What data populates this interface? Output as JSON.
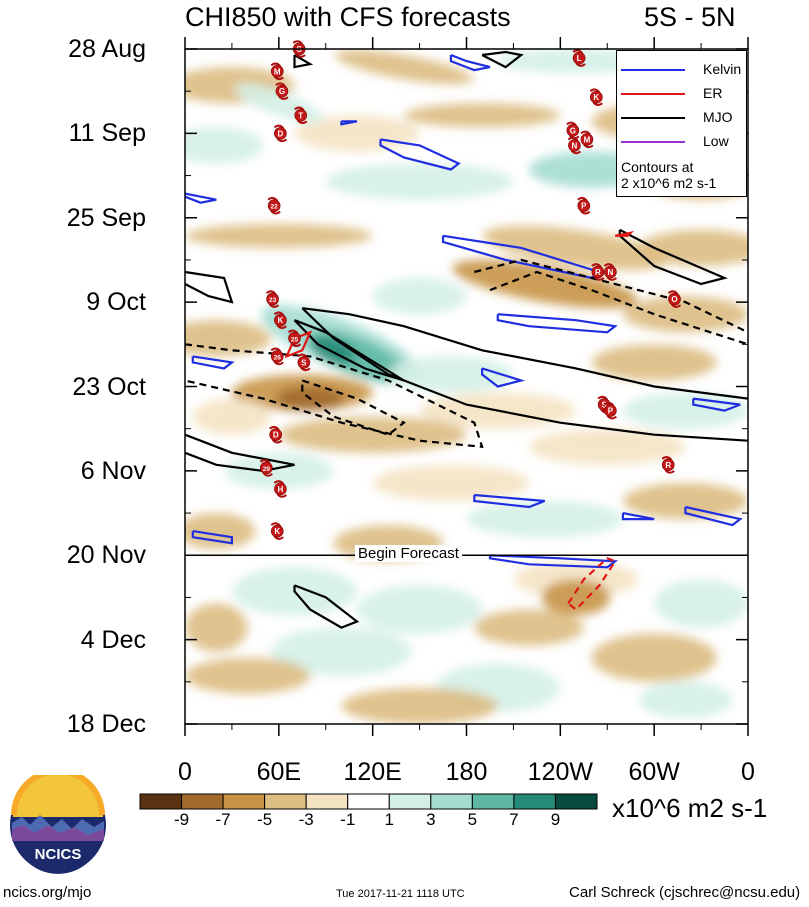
{
  "header": {
    "title": "CHI850 with CFS forecasts",
    "region": "5S - 5N"
  },
  "chart_data": {
    "type": "heatmap",
    "title": "CHI850 with CFS forecasts",
    "subtitle": "5S - 5N",
    "x_tick_labels": [
      "0",
      "60E",
      "120E",
      "180",
      "120W",
      "60W",
      "0"
    ],
    "x_ticks_deg": [
      0,
      60,
      120,
      180,
      240,
      300,
      360
    ],
    "xlim": [
      0,
      360
    ],
    "y_tick_labels": [
      "28 Aug",
      "11 Sep",
      "25 Sep",
      "9 Oct",
      "23 Oct",
      "6 Nov",
      "20 Nov",
      "4 Dec",
      "18 Dec"
    ],
    "y_ticks_day": [
      0,
      14,
      28,
      42,
      56,
      70,
      84,
      98,
      112
    ],
    "ylim_day": [
      0,
      112
    ],
    "forecast_start_day": 84,
    "forecast_label": "Begin Forecast",
    "colorbar": {
      "labels": [
        "-9",
        "-7",
        "-5",
        "-3",
        "-1",
        "1",
        "3",
        "5",
        "7",
        "9"
      ],
      "levels": [
        -9,
        -7,
        -5,
        -3,
        -1,
        1,
        3,
        5,
        7,
        9
      ],
      "colors": [
        "#5a3412",
        "#a06a2c",
        "#c69347",
        "#dcbd82",
        "#f4e3c3",
        "#ffffff",
        "#d4efe7",
        "#a4dcd0",
        "#5fb8a4",
        "#268a78",
        "#0a4b40"
      ],
      "units": "x10^6 m2 s-1"
    },
    "legend": [
      {
        "label": "Kelvin",
        "color": "#1f2ee0"
      },
      {
        "label": "ER",
        "color": "#e01616"
      },
      {
        "label": "MJO",
        "color": "#000000"
      },
      {
        "label": "Low",
        "color": "#9933cc"
      }
    ],
    "contour_note": [
      "Contours at",
      "2 x10^6 m2 s-1"
    ],
    "storms": [
      {
        "label": "S",
        "lon": 73,
        "day": 0
      },
      {
        "label": "L",
        "lon": 252,
        "day": 1.5
      },
      {
        "label": "M",
        "lon": 59,
        "day": 3.7
      },
      {
        "label": "K",
        "lon": 263,
        "day": 8
      },
      {
        "label": "G",
        "lon": 62,
        "day": 7
      },
      {
        "label": "T",
        "lon": 74,
        "day": 11
      },
      {
        "label": "D",
        "lon": 61,
        "day": 14
      },
      {
        "label": "G",
        "lon": 248,
        "day": 13.5
      },
      {
        "label": "M",
        "lon": 257,
        "day": 15
      },
      {
        "label": "N",
        "lon": 249,
        "day": 16
      },
      {
        "label": "22",
        "lon": 57,
        "day": 26
      },
      {
        "label": "P",
        "lon": 255,
        "day": 26
      },
      {
        "label": "R",
        "lon": 264,
        "day": 37
      },
      {
        "label": "N",
        "lon": 272,
        "day": 37
      },
      {
        "label": "23",
        "lon": 56,
        "day": 41.5
      },
      {
        "label": "O",
        "lon": 313,
        "day": 41.5
      },
      {
        "label": "K",
        "lon": 61,
        "day": 45
      },
      {
        "label": "25",
        "lon": 70,
        "day": 48
      },
      {
        "label": "26",
        "lon": 59,
        "day": 51
      },
      {
        "label": "S",
        "lon": 76,
        "day": 52
      },
      {
        "label": "S",
        "lon": 268,
        "day": 59
      },
      {
        "label": "P",
        "lon": 272,
        "day": 60
      },
      {
        "label": "D",
        "lon": 58,
        "day": 64
      },
      {
        "label": "R",
        "lon": 309,
        "day": 69
      },
      {
        "label": "29",
        "lon": 52,
        "day": 69.5
      },
      {
        "label": "H",
        "lon": 61,
        "day": 73
      },
      {
        "label": "K",
        "lon": 59,
        "day": 80
      }
    ]
  },
  "footer": {
    "logo_text": "NCICS",
    "site": "ncics.org/mjo",
    "timestamp": "Tue 2017-11-21 1118 UTC",
    "author": "Carl Schreck (cjschrec@ncsu.edu)"
  }
}
